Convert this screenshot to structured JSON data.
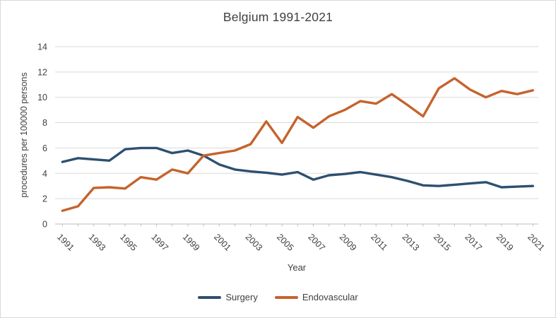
{
  "figure": {
    "title": "Belgium 1991-2021",
    "x_axis_title": "Year",
    "y_axis_title": "procedures per 100000 persons"
  },
  "chart_data": {
    "type": "line",
    "title": "Belgium 1991-2021",
    "xlabel": "Year",
    "ylabel": "procedures per 100000 persons",
    "x": [
      1991,
      1992,
      1993,
      1994,
      1995,
      1996,
      1997,
      1998,
      1999,
      2000,
      2001,
      2002,
      2003,
      2004,
      2005,
      2006,
      2007,
      2008,
      2009,
      2010,
      2011,
      2012,
      2013,
      2014,
      2015,
      2016,
      2017,
      2018,
      2019,
      2020,
      2021
    ],
    "x_tick_labels": [
      "1991",
      "1993",
      "1995",
      "1997",
      "1999",
      "2001",
      "2003",
      "2005",
      "2007",
      "2009",
      "2011",
      "2013",
      "2015",
      "2017",
      "2019",
      "2021"
    ],
    "yticks": [
      0,
      2,
      4,
      6,
      8,
      10,
      12,
      14
    ],
    "ylim": [
      0,
      14
    ],
    "grid": true,
    "legend_position": "bottom",
    "colors": {
      "surgery": "#2e5070",
      "endovascular": "#c5632c",
      "gridline": "#d9d9d9",
      "axis": "#bfbfbf",
      "text": "#404040"
    },
    "series": [
      {
        "name": "Surgery",
        "color": "#2e5070",
        "values": [
          4.9,
          5.2,
          5.1,
          5.0,
          5.9,
          6.0,
          6.0,
          5.6,
          5.8,
          5.4,
          4.7,
          4.3,
          4.15,
          4.05,
          3.9,
          4.1,
          3.5,
          3.85,
          3.95,
          4.1,
          3.9,
          3.7,
          3.4,
          3.05,
          3.0,
          3.1,
          3.2,
          3.3,
          2.9,
          2.95,
          3.0
        ]
      },
      {
        "name": "Endovascular",
        "color": "#c5632c",
        "values": [
          1.05,
          1.4,
          2.85,
          2.9,
          2.8,
          3.7,
          3.5,
          4.3,
          4.0,
          5.4,
          5.6,
          5.8,
          6.3,
          8.1,
          6.4,
          8.45,
          7.6,
          8.5,
          9.0,
          9.7,
          9.5,
          10.25,
          9.4,
          8.5,
          10.7,
          11.5,
          10.6,
          10.0,
          10.5,
          10.25,
          10.55
        ]
      }
    ]
  }
}
